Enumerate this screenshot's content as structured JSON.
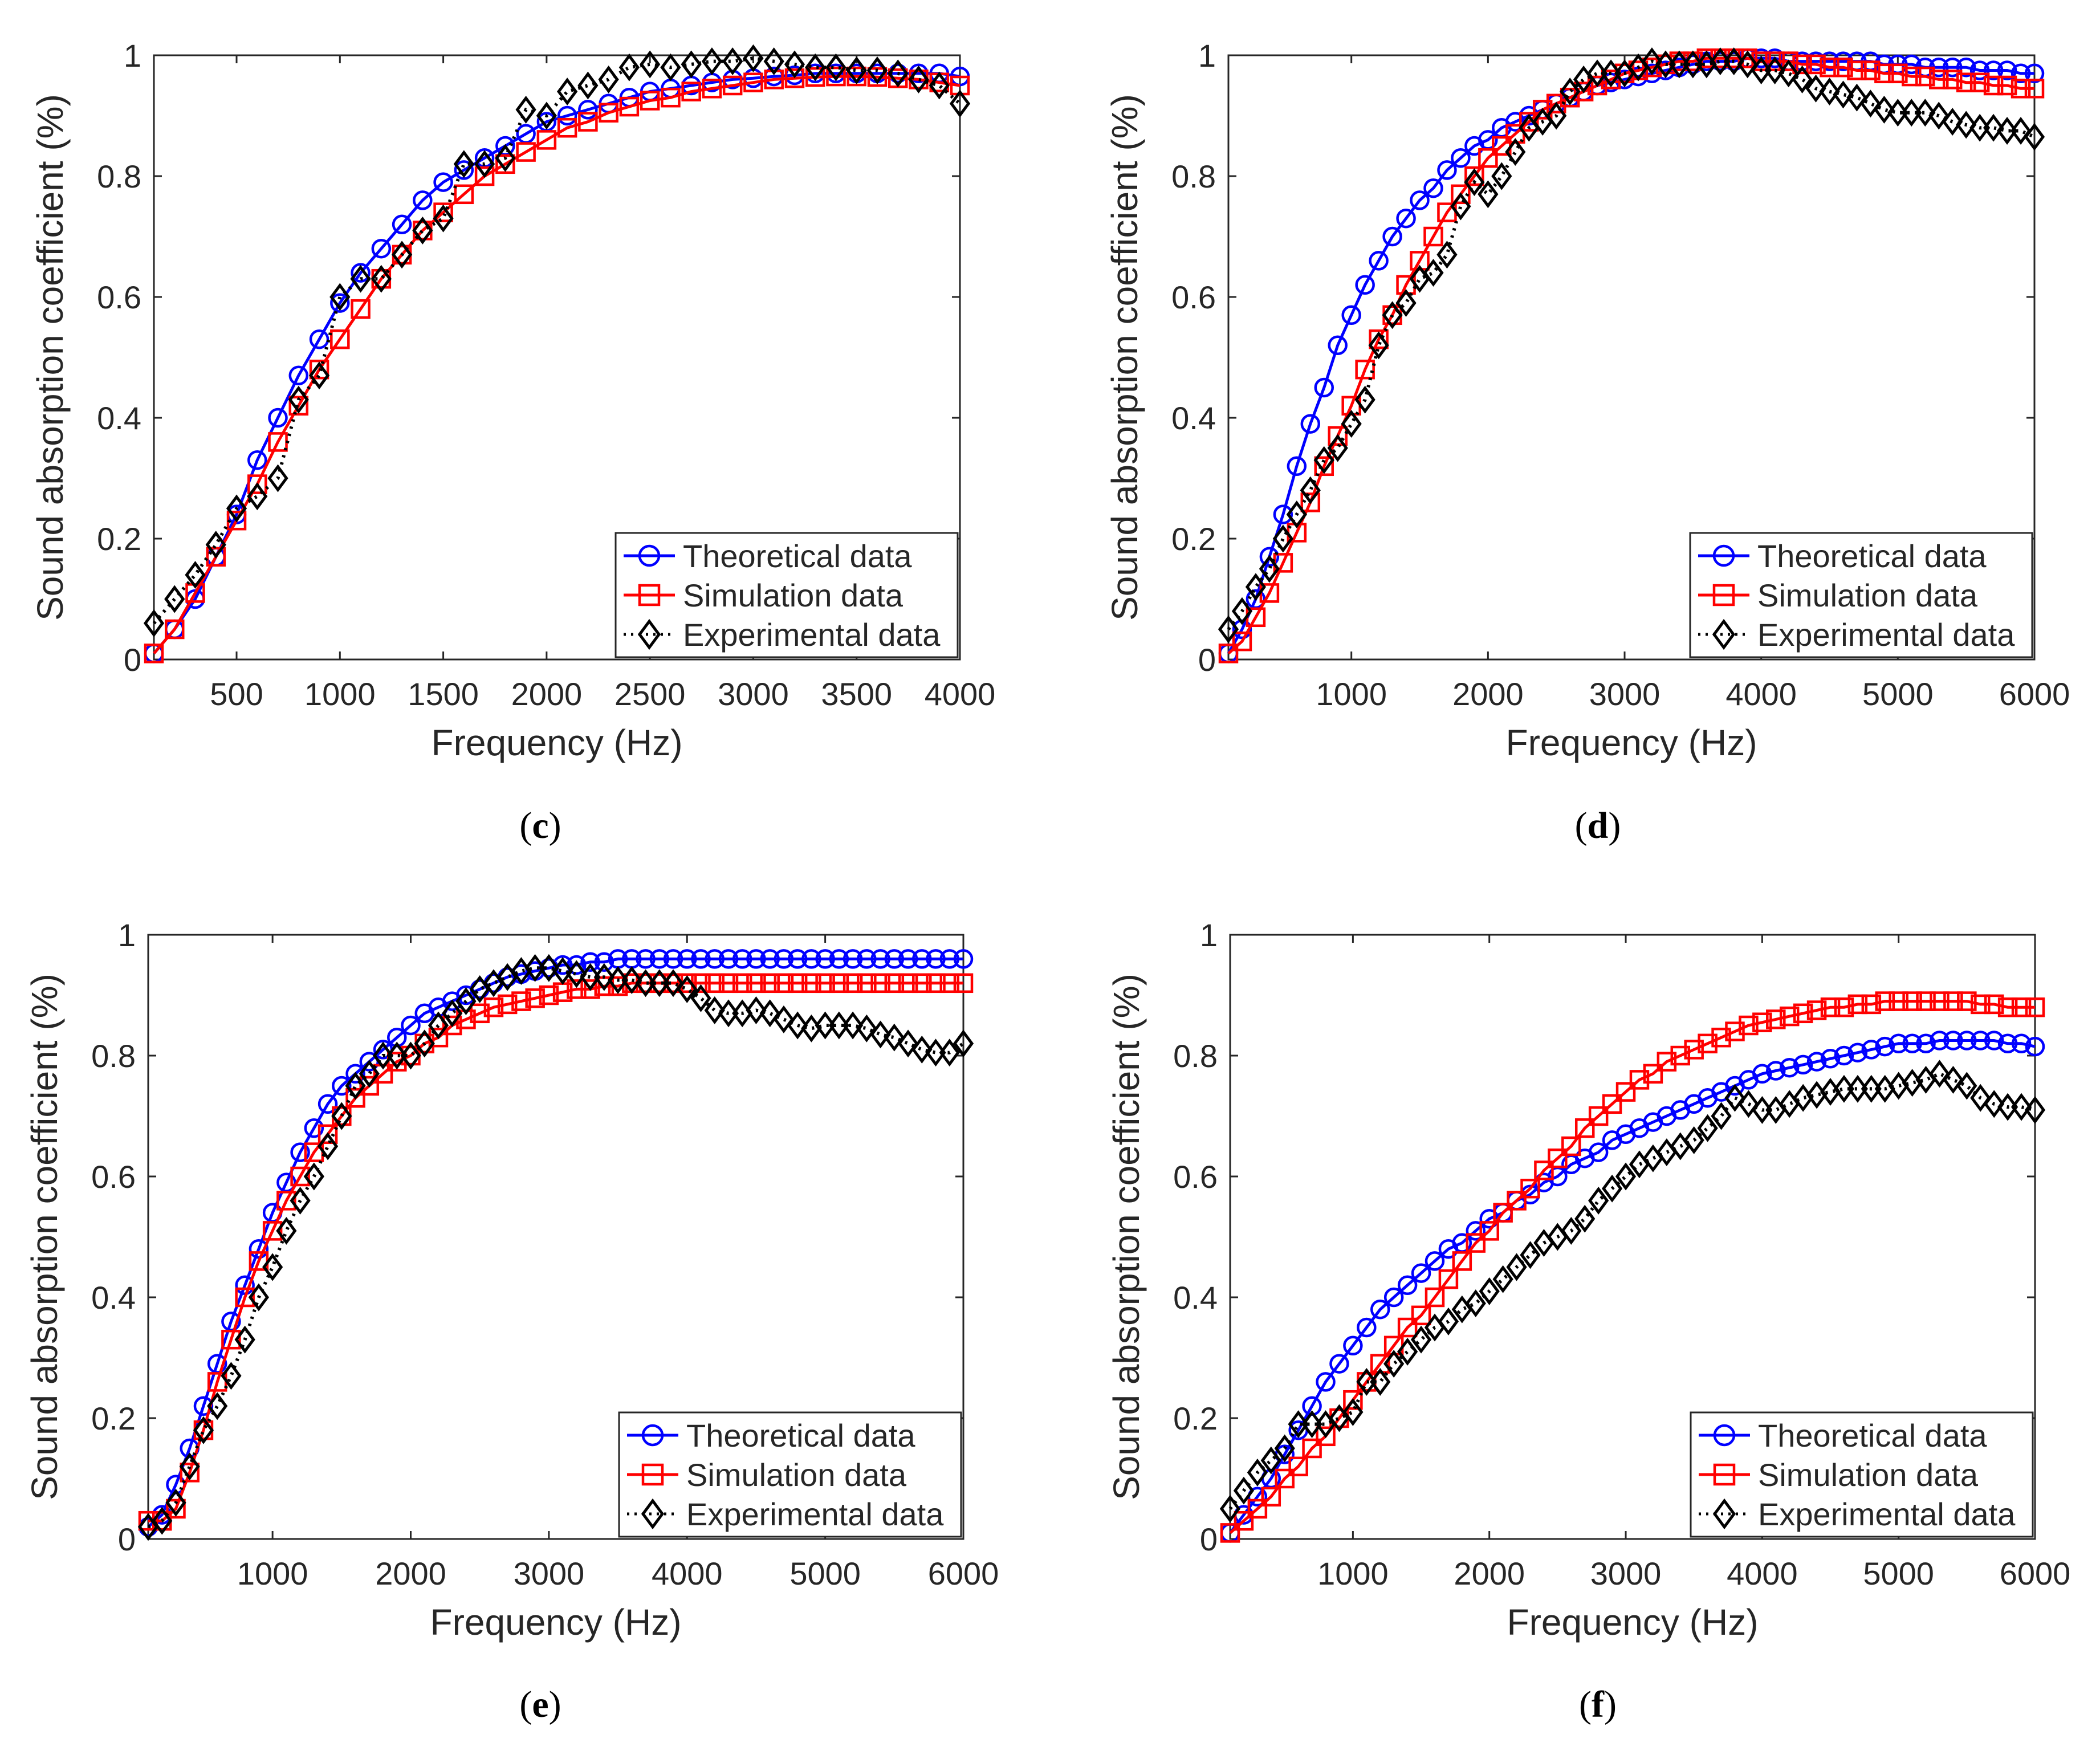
{
  "panels": [
    {
      "label_prefix": "(",
      "label_letter": "c",
      "label_suffix": ")"
    },
    {
      "label_prefix": "(",
      "label_letter": "d",
      "label_suffix": ")"
    },
    {
      "label_prefix": "(",
      "label_letter": "e",
      "label_suffix": ")"
    },
    {
      "label_prefix": "(",
      "label_letter": "f",
      "label_suffix": ")"
    }
  ],
  "series_styles": [
    {
      "name": "Theoretical data",
      "color": "#0000ff",
      "marker": "circle",
      "line": "solid"
    },
    {
      "name": "Simulation data",
      "color": "#ff0000",
      "marker": "square",
      "line": "solid"
    },
    {
      "name": "Experimental data",
      "color": "#000000",
      "marker": "diamond",
      "line": "dotted"
    }
  ],
  "chart_data": [
    {
      "type": "line",
      "xlabel": "Frequency (Hz)",
      "ylabel": "Sound absorption coefficient (%)",
      "xlim": [
        100,
        4000
      ],
      "ylim": [
        0,
        1
      ],
      "xticks": [
        500,
        1000,
        1500,
        2000,
        2500,
        3000,
        3500,
        4000
      ],
      "yticks": [
        0,
        0.2,
        0.4,
        0.6,
        0.8,
        1
      ],
      "ytick_labels": [
        "0",
        "0.2",
        "0.4",
        "0.6",
        "0.8",
        "1"
      ],
      "grid": false,
      "legend_position": "bottom-right",
      "x": {
        "start": 100,
        "step": 100,
        "count": 40
      },
      "series": [
        {
          "name": "Theoretical data",
          "values": [
            0.01,
            0.05,
            0.1,
            0.17,
            0.24,
            0.33,
            0.4,
            0.47,
            0.53,
            0.59,
            0.64,
            0.68,
            0.72,
            0.76,
            0.79,
            0.81,
            0.83,
            0.85,
            0.87,
            0.89,
            0.9,
            0.91,
            0.92,
            0.93,
            0.94,
            0.945,
            0.95,
            0.955,
            0.96,
            0.962,
            0.965,
            0.967,
            0.97,
            0.97,
            0.97,
            0.97,
            0.97,
            0.97,
            0.97,
            0.965
          ]
        },
        {
          "name": "Simulation data",
          "values": [
            0.01,
            0.05,
            0.11,
            0.17,
            0.23,
            0.29,
            0.36,
            0.42,
            0.48,
            0.53,
            0.58,
            0.63,
            0.67,
            0.71,
            0.74,
            0.77,
            0.8,
            0.82,
            0.84,
            0.86,
            0.88,
            0.89,
            0.905,
            0.915,
            0.925,
            0.93,
            0.94,
            0.945,
            0.95,
            0.955,
            0.96,
            0.962,
            0.964,
            0.965,
            0.965,
            0.964,
            0.962,
            0.96,
            0.955,
            0.95
          ]
        },
        {
          "name": "Experimental data",
          "values": [
            0.06,
            0.1,
            0.14,
            0.19,
            0.25,
            0.27,
            0.3,
            0.43,
            0.47,
            0.6,
            0.63,
            0.63,
            0.67,
            0.71,
            0.73,
            0.82,
            0.82,
            0.83,
            0.91,
            0.9,
            0.94,
            0.95,
            0.96,
            0.98,
            0.985,
            0.98,
            0.985,
            0.99,
            0.99,
            0.995,
            0.99,
            0.985,
            0.98,
            0.98,
            0.975,
            0.975,
            0.97,
            0.96,
            0.95,
            0.92
          ]
        }
      ]
    },
    {
      "type": "line",
      "xlabel": "Frequency (Hz)",
      "ylabel": "Sound absorption coefficient (%)",
      "xlim": [
        100,
        6000
      ],
      "ylim": [
        0,
        1
      ],
      "xticks": [
        1000,
        2000,
        3000,
        4000,
        5000,
        6000
      ],
      "yticks": [
        0,
        0.2,
        0.4,
        0.6,
        0.8,
        1
      ],
      "ytick_labels": [
        "0",
        "0.2",
        "0.4",
        "0.6",
        "0.8",
        "1"
      ],
      "grid": false,
      "legend_position": "bottom-right",
      "x": {
        "start": 100,
        "step": 100,
        "count": 60
      },
      "series": [
        {
          "name": "Theoretical data",
          "values": [
            0.01,
            0.05,
            0.1,
            0.17,
            0.24,
            0.32,
            0.39,
            0.45,
            0.52,
            0.57,
            0.62,
            0.66,
            0.7,
            0.73,
            0.76,
            0.78,
            0.81,
            0.83,
            0.85,
            0.86,
            0.88,
            0.89,
            0.9,
            0.91,
            0.92,
            0.93,
            0.94,
            0.95,
            0.955,
            0.96,
            0.965,
            0.97,
            0.975,
            0.98,
            0.985,
            0.99,
            0.99,
            0.99,
            0.995,
            0.995,
            0.995,
            0.99,
            0.99,
            0.99,
            0.99,
            0.99,
            0.99,
            0.99,
            0.985,
            0.985,
            0.985,
            0.98,
            0.98,
            0.98,
            0.98,
            0.975,
            0.975,
            0.975,
            0.97,
            0.97
          ]
        },
        {
          "name": "Simulation data",
          "values": [
            0.01,
            0.03,
            0.07,
            0.11,
            0.16,
            0.21,
            0.26,
            0.32,
            0.37,
            0.42,
            0.48,
            0.53,
            0.57,
            0.62,
            0.66,
            0.7,
            0.74,
            0.77,
            0.8,
            0.83,
            0.85,
            0.87,
            0.89,
            0.91,
            0.92,
            0.93,
            0.94,
            0.95,
            0.96,
            0.97,
            0.975,
            0.98,
            0.985,
            0.99,
            0.99,
            0.995,
            0.995,
            0.995,
            0.995,
            0.99,
            0.99,
            0.99,
            0.985,
            0.985,
            0.98,
            0.98,
            0.975,
            0.975,
            0.97,
            0.97,
            0.965,
            0.965,
            0.96,
            0.96,
            0.955,
            0.955,
            0.95,
            0.95,
            0.945,
            0.945
          ]
        },
        {
          "name": "Experimental data",
          "values": [
            0.05,
            0.08,
            0.12,
            0.15,
            0.2,
            0.24,
            0.28,
            0.33,
            0.35,
            0.39,
            0.43,
            0.52,
            0.57,
            0.59,
            0.63,
            0.64,
            0.67,
            0.75,
            0.79,
            0.77,
            0.8,
            0.84,
            0.88,
            0.89,
            0.9,
            0.94,
            0.96,
            0.97,
            0.97,
            0.97,
            0.98,
            0.99,
            0.985,
            0.985,
            0.985,
            0.985,
            0.99,
            0.99,
            0.985,
            0.975,
            0.975,
            0.97,
            0.96,
            0.945,
            0.94,
            0.935,
            0.93,
            0.92,
            0.91,
            0.905,
            0.905,
            0.905,
            0.9,
            0.89,
            0.885,
            0.88,
            0.88,
            0.875,
            0.875,
            0.865
          ]
        }
      ]
    },
    {
      "type": "line",
      "xlabel": "Frequency (Hz)",
      "ylabel": "Sound absorption coefficient (%)",
      "xlim": [
        100,
        6000
      ],
      "ylim": [
        0,
        1
      ],
      "xticks": [
        1000,
        2000,
        3000,
        4000,
        5000,
        6000
      ],
      "yticks": [
        0,
        0.2,
        0.4,
        0.6,
        0.8,
        1
      ],
      "ytick_labels": [
        "0",
        "0.2",
        "0.4",
        "0.6",
        "0.8",
        "1"
      ],
      "grid": false,
      "legend_position": "bottom-right",
      "x": {
        "start": 100,
        "step": 100,
        "count": 60
      },
      "series": [
        {
          "name": "Theoretical data",
          "values": [
            0.02,
            0.04,
            0.09,
            0.15,
            0.22,
            0.29,
            0.36,
            0.42,
            0.48,
            0.54,
            0.59,
            0.64,
            0.68,
            0.72,
            0.75,
            0.77,
            0.79,
            0.81,
            0.83,
            0.85,
            0.87,
            0.88,
            0.89,
            0.9,
            0.91,
            0.92,
            0.93,
            0.935,
            0.94,
            0.945,
            0.95,
            0.95,
            0.955,
            0.955,
            0.96,
            0.96,
            0.96,
            0.96,
            0.96,
            0.96,
            0.96,
            0.96,
            0.96,
            0.96,
            0.96,
            0.96,
            0.96,
            0.96,
            0.96,
            0.96,
            0.96,
            0.96,
            0.96,
            0.96,
            0.96,
            0.96,
            0.96,
            0.96,
            0.96,
            0.96
          ]
        },
        {
          "name": "Simulation data",
          "values": [
            0.03,
            0.03,
            0.05,
            0.11,
            0.18,
            0.26,
            0.33,
            0.4,
            0.46,
            0.51,
            0.56,
            0.6,
            0.64,
            0.67,
            0.7,
            0.73,
            0.75,
            0.77,
            0.79,
            0.8,
            0.82,
            0.83,
            0.85,
            0.86,
            0.87,
            0.88,
            0.885,
            0.89,
            0.895,
            0.9,
            0.905,
            0.91,
            0.91,
            0.915,
            0.915,
            0.92,
            0.92,
            0.92,
            0.92,
            0.92,
            0.92,
            0.92,
            0.92,
            0.92,
            0.92,
            0.92,
            0.92,
            0.92,
            0.92,
            0.92,
            0.92,
            0.92,
            0.92,
            0.92,
            0.92,
            0.92,
            0.92,
            0.92,
            0.92,
            0.92
          ]
        },
        {
          "name": "Experimental data",
          "values": [
            0.02,
            0.03,
            0.06,
            0.12,
            0.18,
            0.22,
            0.27,
            0.33,
            0.4,
            0.45,
            0.51,
            0.56,
            0.6,
            0.65,
            0.7,
            0.75,
            0.77,
            0.8,
            0.8,
            0.8,
            0.82,
            0.85,
            0.87,
            0.89,
            0.91,
            0.92,
            0.93,
            0.94,
            0.945,
            0.945,
            0.94,
            0.935,
            0.93,
            0.93,
            0.925,
            0.925,
            0.92,
            0.92,
            0.92,
            0.91,
            0.895,
            0.875,
            0.87,
            0.87,
            0.875,
            0.87,
            0.86,
            0.85,
            0.845,
            0.85,
            0.85,
            0.85,
            0.845,
            0.835,
            0.83,
            0.82,
            0.81,
            0.805,
            0.805,
            0.82
          ]
        }
      ]
    },
    {
      "type": "line",
      "xlabel": "Frequency (Hz)",
      "ylabel": "Sound absorption coefficient (%)",
      "xlim": [
        100,
        6000
      ],
      "ylim": [
        0,
        1
      ],
      "xticks": [
        1000,
        2000,
        3000,
        4000,
        5000,
        6000
      ],
      "yticks": [
        0,
        0.2,
        0.4,
        0.6,
        0.8,
        1
      ],
      "ytick_labels": [
        "0",
        "0.2",
        "0.4",
        "0.6",
        "0.8",
        "1"
      ],
      "grid": false,
      "legend_position": "bottom-right",
      "x": {
        "start": 100,
        "step": 100,
        "count": 60
      },
      "series": [
        {
          "name": "Theoretical data",
          "values": [
            0.01,
            0.04,
            0.07,
            0.1,
            0.14,
            0.18,
            0.22,
            0.26,
            0.29,
            0.32,
            0.35,
            0.38,
            0.4,
            0.42,
            0.44,
            0.46,
            0.48,
            0.49,
            0.51,
            0.53,
            0.54,
            0.56,
            0.57,
            0.59,
            0.6,
            0.62,
            0.63,
            0.64,
            0.66,
            0.67,
            0.68,
            0.69,
            0.7,
            0.71,
            0.72,
            0.73,
            0.74,
            0.75,
            0.76,
            0.77,
            0.775,
            0.78,
            0.785,
            0.79,
            0.795,
            0.8,
            0.805,
            0.81,
            0.815,
            0.82,
            0.82,
            0.82,
            0.825,
            0.825,
            0.825,
            0.825,
            0.825,
            0.82,
            0.82,
            0.815
          ]
        },
        {
          "name": "Simulation data",
          "values": [
            0.01,
            0.03,
            0.05,
            0.07,
            0.1,
            0.12,
            0.15,
            0.17,
            0.2,
            0.23,
            0.26,
            0.29,
            0.32,
            0.35,
            0.37,
            0.4,
            0.43,
            0.46,
            0.49,
            0.51,
            0.54,
            0.56,
            0.58,
            0.61,
            0.63,
            0.65,
            0.68,
            0.7,
            0.72,
            0.74,
            0.76,
            0.77,
            0.79,
            0.8,
            0.81,
            0.82,
            0.83,
            0.84,
            0.85,
            0.855,
            0.86,
            0.865,
            0.87,
            0.875,
            0.88,
            0.88,
            0.885,
            0.885,
            0.89,
            0.89,
            0.89,
            0.89,
            0.89,
            0.89,
            0.89,
            0.885,
            0.885,
            0.88,
            0.88,
            0.88
          ]
        },
        {
          "name": "Experimental data",
          "values": [
            0.05,
            0.08,
            0.11,
            0.13,
            0.15,
            0.19,
            0.19,
            0.19,
            0.2,
            0.21,
            0.26,
            0.26,
            0.29,
            0.31,
            0.33,
            0.35,
            0.36,
            0.38,
            0.39,
            0.41,
            0.43,
            0.45,
            0.47,
            0.49,
            0.5,
            0.51,
            0.53,
            0.56,
            0.58,
            0.6,
            0.62,
            0.63,
            0.64,
            0.65,
            0.66,
            0.68,
            0.7,
            0.73,
            0.72,
            0.71,
            0.71,
            0.72,
            0.73,
            0.735,
            0.74,
            0.745,
            0.745,
            0.745,
            0.745,
            0.75,
            0.755,
            0.76,
            0.77,
            0.76,
            0.75,
            0.73,
            0.72,
            0.715,
            0.715,
            0.71
          ]
        }
      ]
    }
  ]
}
